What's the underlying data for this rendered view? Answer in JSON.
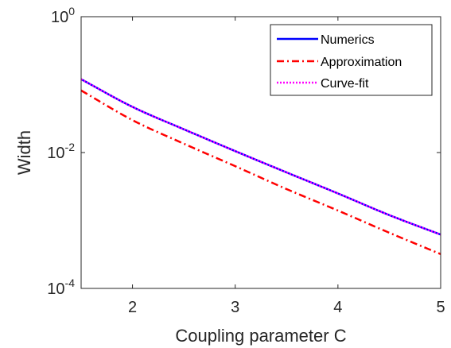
{
  "chart_data": {
    "type": "line",
    "xlabel": "Coupling parameter C",
    "ylabel": "Width",
    "xlim": [
      1.5,
      5
    ],
    "ylim": [
      0.0001,
      1
    ],
    "yscale": "log",
    "grid": false,
    "legend_position": "top-right",
    "x_ticks": [
      {
        "value": 2,
        "label": "2"
      },
      {
        "value": 3,
        "label": "3"
      },
      {
        "value": 4,
        "label": "4"
      },
      {
        "value": 5,
        "label": "5"
      }
    ],
    "y_ticks": [
      {
        "value": 0.0001,
        "base": "10",
        "exp": "-4"
      },
      {
        "value": 0.01,
        "base": "10",
        "exp": "-2"
      },
      {
        "value": 1,
        "base": "10",
        "exp": "0"
      }
    ],
    "series": [
      {
        "name": "Numerics",
        "color": "#0000ff",
        "dash": "solid",
        "x": [
          1.5,
          2.0,
          2.5,
          3.0,
          3.5,
          4.0,
          4.5,
          5.0
        ],
        "y": [
          0.12,
          0.047,
          0.022,
          0.0105,
          0.0051,
          0.0025,
          0.0012,
          0.00062
        ]
      },
      {
        "name": "Approximation",
        "color": "#ff0000",
        "dash": "dashdot",
        "x": [
          1.5,
          2.0,
          2.5,
          3.0,
          3.5,
          4.0,
          4.5,
          5.0
        ],
        "y": [
          0.082,
          0.03,
          0.0135,
          0.0063,
          0.0029,
          0.0014,
          0.00066,
          0.00032
        ]
      },
      {
        "name": "Curve-fit",
        "color": "#ff00ff",
        "dash": "dotted",
        "x": [
          1.5,
          2.0,
          2.5,
          3.0,
          3.5,
          4.0,
          4.5,
          5.0
        ],
        "y": [
          0.12,
          0.047,
          0.022,
          0.0105,
          0.0051,
          0.0025,
          0.0012,
          0.00062
        ]
      }
    ]
  }
}
